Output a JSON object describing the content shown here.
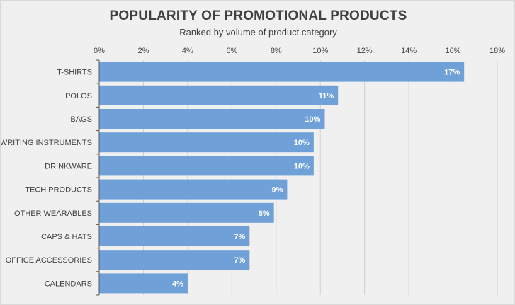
{
  "chart_data": {
    "type": "bar",
    "orientation": "horizontal",
    "title": "POPULARITY OF PROMOTIONAL PRODUCTS",
    "subtitle": "Ranked by volume of product category",
    "categories": [
      "T-SHIRTS",
      "POLOS",
      "BAGS",
      "WRITING INSTRUMENTS",
      "DRINKWARE",
      "TECH PRODUCTS",
      "OTHER WEARABLES",
      "CAPS & HATS",
      "OFFICE ACCESSORIES",
      "CALENDARS"
    ],
    "values": [
      16.5,
      10.8,
      10.2,
      9.7,
      9.7,
      8.5,
      7.9,
      6.8,
      6.8,
      4.0
    ],
    "data_labels": [
      "17%",
      "11%",
      "10%",
      "10%",
      "10%",
      "9%",
      "8%",
      "7%",
      "7%",
      "4%"
    ],
    "xlim": [
      0,
      18
    ],
    "x_ticks": [
      "0%",
      "2%",
      "4%",
      "6%",
      "8%",
      "10%",
      "12%",
      "14%",
      "16%",
      "18%"
    ],
    "x_axis_position": "top",
    "grid": true,
    "legend": "none",
    "bar_color": "#6fa0d8",
    "grid_color": "#d0d0d0",
    "background_color": "#f0f0f0"
  }
}
